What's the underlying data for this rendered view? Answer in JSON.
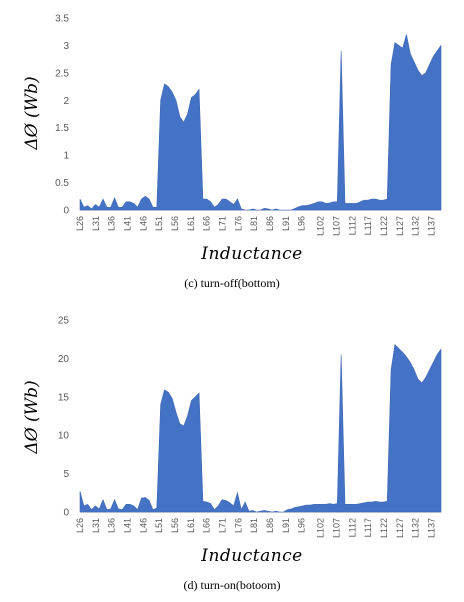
{
  "chart_data": [
    {
      "type": "area",
      "caption": "(c)  turn-off(bottom)",
      "xlabel": "Inductance",
      "ylabel": "ΔØ (Wb)",
      "ylim": [
        0,
        3.5
      ],
      "yticks": [
        "0",
        "0.5",
        "1",
        "1.5",
        "2",
        "2.5",
        "3",
        "3.5"
      ],
      "ytick_values": [
        0,
        0.5,
        1,
        1.5,
        2,
        2.5,
        3,
        3.5
      ],
      "x_start": 26,
      "x_end": 140,
      "xtick_labels": [
        "L26",
        "L31",
        "L36",
        "L41",
        "L46",
        "L51",
        "L56",
        "L61",
        "L66",
        "L71",
        "L76",
        "L81",
        "L86",
        "L91",
        "L96",
        "L102",
        "L107",
        "L112",
        "L117",
        "L122",
        "L127",
        "L132",
        "L137"
      ],
      "values": [
        0.2,
        0.05,
        0.08,
        0.02,
        0.1,
        0.05,
        0.2,
        0.05,
        0.05,
        0.22,
        0.05,
        0.05,
        0.15,
        0.15,
        0.12,
        0.05,
        0.2,
        0.25,
        0.2,
        0.05,
        0.05,
        2.0,
        2.3,
        2.25,
        2.15,
        2.0,
        1.7,
        1.6,
        1.75,
        2.05,
        2.1,
        2.2,
        0.2,
        0.2,
        0.15,
        0.05,
        0.1,
        0.2,
        0.2,
        0.15,
        0.1,
        0.2,
        0.02,
        0.0,
        0.0,
        0.02,
        0.0,
        0.0,
        0.03,
        0.02,
        0.0,
        0.02,
        0.0,
        0.0,
        0.0,
        0.0,
        0.03,
        0.06,
        0.08,
        0.08,
        0.1,
        0.12,
        0.15,
        0.15,
        0.12,
        0.13,
        0.15,
        0.15,
        2.9,
        0.12,
        0.12,
        0.12,
        0.12,
        0.15,
        0.18,
        0.18,
        0.2,
        0.2,
        0.18,
        0.18,
        0.2,
        2.65,
        3.05,
        3.0,
        2.95,
        3.2,
        2.85,
        2.7,
        2.55,
        2.45,
        2.5,
        2.65,
        2.8,
        2.9,
        3.0
      ]
    },
    {
      "type": "area",
      "caption": "(d)  turn-on(botoom)",
      "xlabel": "Inductance",
      "ylabel": "ΔØ (Wb)",
      "ylim": [
        0,
        25
      ],
      "yticks": [
        "0",
        "5",
        "10",
        "15",
        "20",
        "25"
      ],
      "ytick_values": [
        0,
        5,
        10,
        15,
        20,
        25
      ],
      "x_start": 26,
      "x_end": 140,
      "xtick_labels": [
        "L26",
        "L31",
        "L36",
        "L41",
        "L46",
        "L51",
        "L56",
        "L61",
        "L66",
        "L71",
        "L76",
        "L81",
        "L86",
        "L91",
        "L96",
        "L102",
        "L107",
        "L112",
        "L117",
        "L122",
        "L127",
        "L132",
        "L137"
      ],
      "values": [
        2.7,
        0.8,
        1.0,
        0.3,
        0.8,
        0.4,
        1.6,
        0.3,
        0.4,
        1.6,
        0.4,
        0.3,
        1.0,
        1.0,
        0.8,
        0.3,
        1.8,
        1.9,
        1.5,
        0.3,
        0.5,
        14.0,
        15.9,
        15.6,
        14.8,
        13.0,
        11.5,
        11.2,
        12.5,
        14.5,
        15.0,
        15.5,
        1.4,
        1.3,
        1.1,
        0.3,
        0.8,
        1.6,
        1.5,
        1.2,
        0.8,
        2.5,
        0.3,
        1.3,
        0.1,
        0.2,
        0.0,
        0.1,
        0.2,
        0.1,
        0.0,
        0.1,
        0.0,
        0.0,
        0.3,
        0.4,
        0.6,
        0.7,
        0.8,
        0.9,
        0.9,
        1.0,
        1.0,
        1.0,
        1.0,
        1.1,
        1.0,
        1.1,
        20.5,
        1.0,
        1.0,
        1.0,
        1.0,
        1.1,
        1.2,
        1.3,
        1.3,
        1.4,
        1.3,
        1.3,
        1.4,
        18.5,
        21.8,
        21.3,
        20.8,
        20.2,
        19.5,
        18.5,
        17.3,
        16.8,
        17.5,
        18.5,
        19.5,
        20.5,
        21.2
      ]
    }
  ]
}
